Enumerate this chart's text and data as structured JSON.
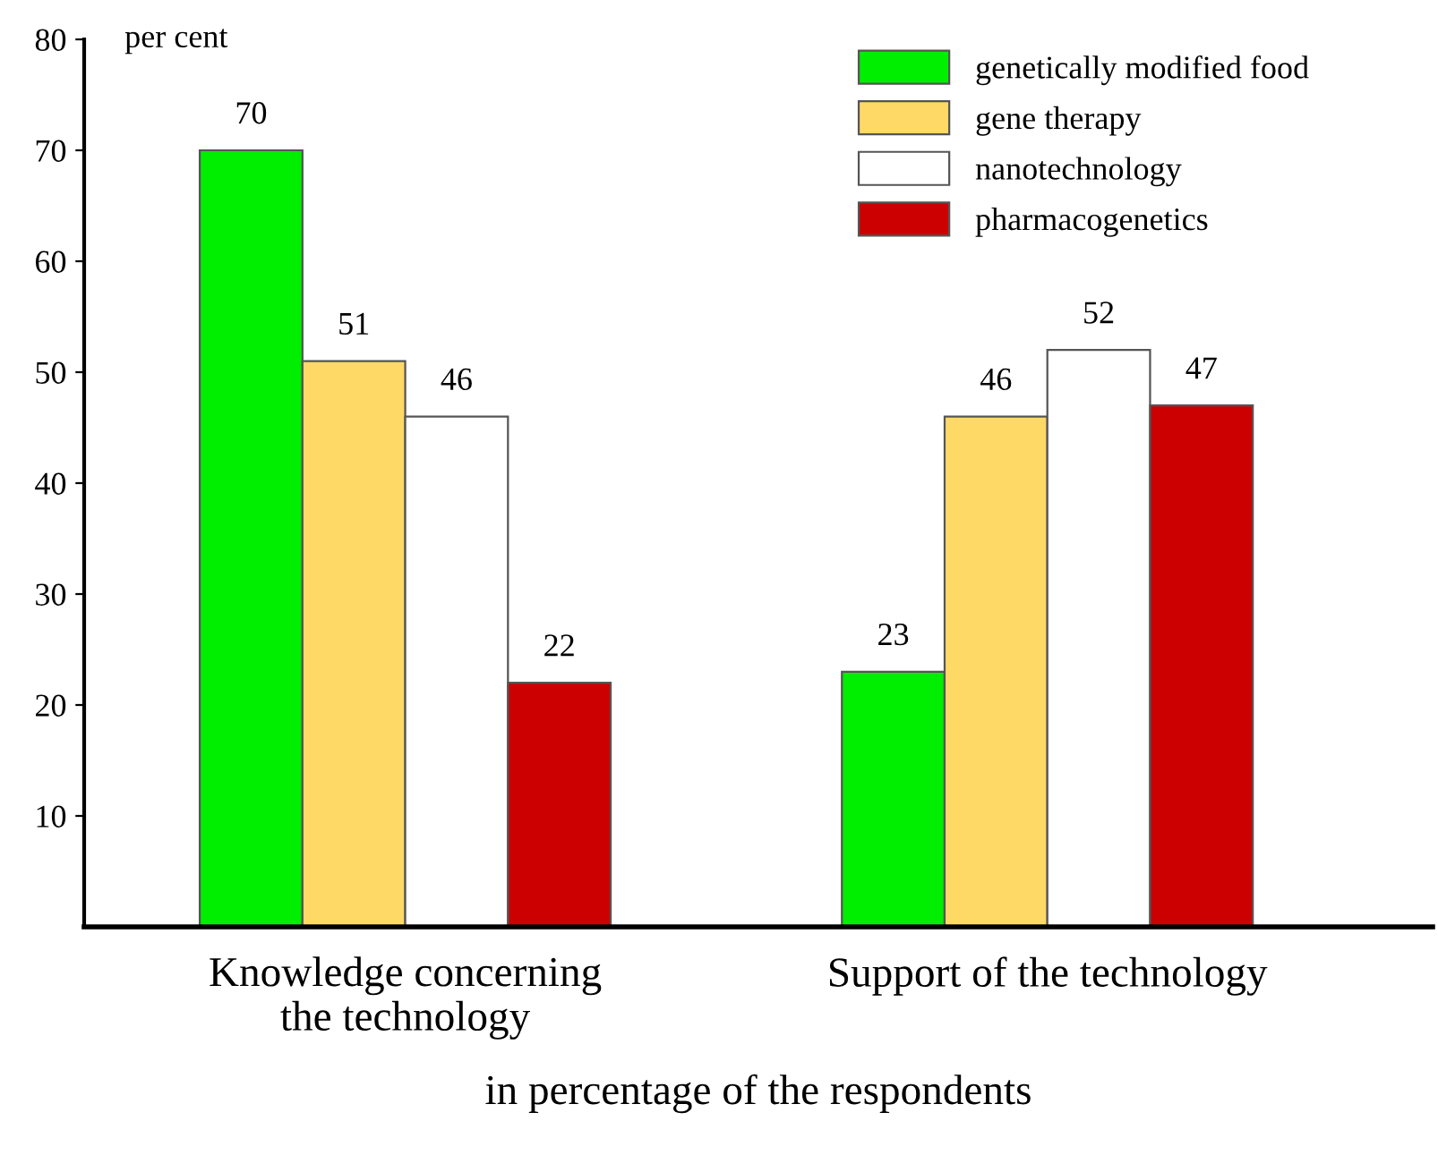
{
  "chart_data": {
    "type": "bar",
    "categories": [
      "Knowledge concerning\nthe technology",
      "Support of the technology"
    ],
    "series": [
      {
        "name": "genetically modified food",
        "color": "#00ee00",
        "values": [
          70,
          23
        ]
      },
      {
        "name": "gene therapy",
        "color": "#ffd966",
        "values": [
          51,
          46
        ]
      },
      {
        "name": "nanotechnology",
        "color": "#ffffff",
        "values": [
          46,
          52
        ]
      },
      {
        "name": "pharmacogenetics",
        "color": "#cc0000",
        "values": [
          22,
          47
        ]
      }
    ],
    "ylabel": "per cent",
    "xlabel": "in percentage of the respondents",
    "ylim": [
      0,
      80
    ],
    "yticks": [
      10,
      20,
      30,
      40,
      50,
      60,
      70,
      80
    ],
    "data_labels": true,
    "legend": "top right",
    "grid": false
  }
}
